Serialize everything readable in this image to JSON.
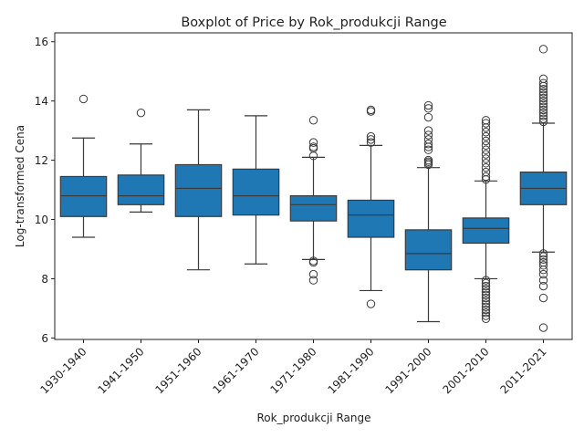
{
  "chart_data": {
    "type": "box",
    "title": "Boxplot of Price by Rok_produkcji Range",
    "xlabel": "Rok_produkcji Range",
    "ylabel": "Log-transformed Cena",
    "ylim": [
      5.95,
      16.3
    ],
    "yticks": [
      6,
      8,
      10,
      12,
      14,
      16
    ],
    "grid": false,
    "legend": "none",
    "box_color": "#1f77b4",
    "line_color": "#3a3a3a",
    "categories": [
      "1930-1940",
      "1941-1950",
      "1951-1960",
      "1961-1970",
      "1971-1980",
      "1981-1990",
      "1991-2000",
      "2001-2010",
      "2011-2021"
    ],
    "boxes": [
      {
        "whislo": 9.4,
        "q1": 10.1,
        "med": 10.8,
        "q3": 11.45,
        "whishi": 12.75,
        "fliers": [
          14.07
        ]
      },
      {
        "whislo": 10.25,
        "q1": 10.5,
        "med": 10.8,
        "q3": 11.5,
        "whishi": 12.55,
        "fliers": [
          13.6
        ]
      },
      {
        "whislo": 8.3,
        "q1": 10.1,
        "med": 11.05,
        "q3": 11.85,
        "whishi": 13.7,
        "fliers": []
      },
      {
        "whislo": 8.5,
        "q1": 10.15,
        "med": 10.8,
        "q3": 11.7,
        "whishi": 13.5,
        "fliers": []
      },
      {
        "whislo": 8.65,
        "q1": 9.95,
        "med": 10.5,
        "q3": 10.8,
        "whishi": 12.1,
        "fliers": [
          13.35,
          12.6,
          12.45,
          12.4,
          12.15,
          8.6,
          8.55,
          8.15,
          7.95
        ]
      },
      {
        "whislo": 7.6,
        "q1": 9.4,
        "med": 10.15,
        "q3": 10.65,
        "whishi": 12.5,
        "fliers": [
          13.7,
          13.65,
          12.8,
          12.7,
          12.6,
          7.15
        ]
      },
      {
        "whislo": 6.55,
        "q1": 8.3,
        "med": 8.85,
        "q3": 9.65,
        "whishi": 11.75,
        "fliers": [
          13.85,
          13.75,
          13.45,
          13.0,
          12.85,
          12.7,
          12.55,
          12.45,
          12.35,
          12.0,
          11.95,
          11.9,
          11.85
        ]
      },
      {
        "whislo": 8.0,
        "q1": 9.2,
        "med": 9.7,
        "q3": 10.05,
        "whishi": 11.3,
        "fliers": [
          13.35,
          13.25,
          13.1,
          12.95,
          12.8,
          12.65,
          12.5,
          12.35,
          12.2,
          12.05,
          11.9,
          11.75,
          11.6,
          11.45,
          11.35,
          7.95,
          7.85,
          7.75,
          7.65,
          7.55,
          7.45,
          7.35,
          7.25,
          7.15,
          7.05,
          6.95,
          6.85,
          6.75,
          6.65
        ]
      },
      {
        "whislo": 8.9,
        "q1": 10.5,
        "med": 11.05,
        "q3": 11.6,
        "whishi": 13.25,
        "fliers": [
          15.75,
          14.75,
          14.6,
          14.5,
          14.4,
          14.3,
          14.2,
          14.1,
          14.0,
          13.9,
          13.8,
          13.7,
          13.6,
          13.5,
          13.4,
          13.3,
          8.85,
          8.75,
          8.65,
          8.55,
          8.45,
          8.3,
          8.15,
          7.95,
          7.75,
          7.35,
          6.35
        ]
      }
    ]
  }
}
